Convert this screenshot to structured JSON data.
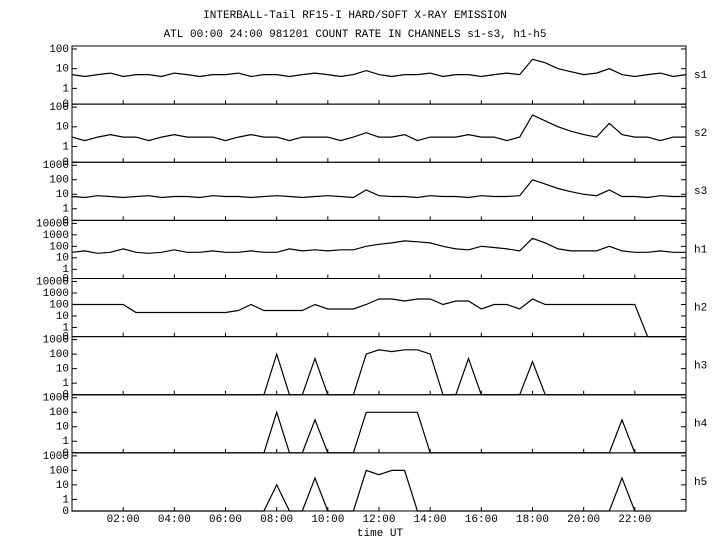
{
  "chart_data": {
    "type": "line",
    "title": "INTERBALL-Tail RF15-I HARD/SOFT X-RAY EMISSION",
    "subtitle": "ATL 00:00 24:00 981201  COUNT RATE IN CHANNELS s1-s3, h1-h5",
    "xlabel": "time UT",
    "yscale": "log",
    "color": "#000000",
    "xlim": [
      0,
      24
    ],
    "xticks": [
      {
        "value": 2,
        "label": "02:00"
      },
      {
        "value": 4,
        "label": "04:00"
      },
      {
        "value": 6,
        "label": "06:00"
      },
      {
        "value": 8,
        "label": "08:00"
      },
      {
        "value": 10,
        "label": "10:00"
      },
      {
        "value": 12,
        "label": "12:00"
      },
      {
        "value": 14,
        "label": "14:00"
      },
      {
        "value": 16,
        "label": "16:00"
      },
      {
        "value": 18,
        "label": "18:00"
      },
      {
        "value": 20,
        "label": "20:00"
      },
      {
        "value": 22,
        "label": "22:00"
      }
    ],
    "x": [
      0,
      0.5,
      1,
      1.5,
      2,
      2.5,
      3,
      3.5,
      4,
      4.5,
      5,
      5.5,
      6,
      6.5,
      7,
      7.5,
      8,
      8.5,
      9,
      9.5,
      10,
      10.5,
      11,
      11.5,
      12,
      12.5,
      13,
      13.5,
      14,
      14.5,
      15,
      15.5,
      16,
      16.5,
      17,
      17.5,
      18,
      18.5,
      19,
      19.5,
      20,
      20.5,
      21,
      21.5,
      22,
      22.5,
      23,
      23.5,
      24
    ],
    "panels": [
      {
        "name": "s1",
        "ylim": [
          0,
          100
        ],
        "yticks": [
          0,
          1,
          10,
          100
        ],
        "values": [
          5,
          4,
          5,
          6,
          4,
          5,
          5,
          4,
          6,
          5,
          4,
          5,
          5,
          6,
          4,
          5,
          5,
          4,
          5,
          6,
          5,
          4,
          5,
          8,
          5,
          4,
          5,
          5,
          6,
          4,
          5,
          5,
          4,
          5,
          6,
          5,
          30,
          20,
          10,
          7,
          5,
          6,
          10,
          5,
          4,
          5,
          6,
          4,
          5
        ]
      },
      {
        "name": "s2",
        "ylim": [
          0,
          100
        ],
        "yticks": [
          0,
          1,
          10,
          100
        ],
        "values": [
          3,
          2,
          3,
          4,
          3,
          3,
          2,
          3,
          4,
          3,
          3,
          3,
          2,
          3,
          4,
          3,
          3,
          2,
          3,
          3,
          3,
          2,
          3,
          5,
          3,
          3,
          4,
          2,
          3,
          3,
          3,
          4,
          3,
          3,
          2,
          3,
          40,
          20,
          10,
          6,
          4,
          3,
          15,
          4,
          3,
          3,
          2,
          3,
          3
        ]
      },
      {
        "name": "s3",
        "ylim": [
          0,
          1000
        ],
        "yticks": [
          0,
          1,
          10,
          100,
          1000
        ],
        "values": [
          7,
          6,
          8,
          7,
          6,
          7,
          8,
          6,
          7,
          7,
          6,
          8,
          7,
          7,
          6,
          7,
          8,
          7,
          6,
          7,
          8,
          7,
          6,
          20,
          8,
          7,
          7,
          6,
          8,
          7,
          7,
          6,
          8,
          7,
          7,
          8,
          100,
          50,
          25,
          15,
          10,
          8,
          20,
          7,
          7,
          6,
          8,
          7,
          7
        ]
      },
      {
        "name": "h1",
        "ylim": [
          0,
          10000
        ],
        "yticks": [
          0,
          1,
          10,
          100,
          1000,
          10000
        ],
        "values": [
          30,
          40,
          25,
          30,
          60,
          30,
          25,
          30,
          50,
          30,
          30,
          40,
          30,
          30,
          40,
          30,
          30,
          60,
          40,
          50,
          40,
          50,
          50,
          100,
          150,
          200,
          300,
          250,
          200,
          100,
          60,
          50,
          100,
          80,
          60,
          40,
          500,
          200,
          60,
          40,
          40,
          40,
          100,
          40,
          30,
          30,
          40,
          30,
          30
        ]
      },
      {
        "name": "h2",
        "ylim": [
          0,
          10000
        ],
        "yticks": [
          0,
          1,
          10,
          100,
          1000,
          10000
        ],
        "values": [
          100,
          100,
          100,
          100,
          100,
          20,
          20,
          20,
          20,
          20,
          20,
          20,
          20,
          30,
          100,
          30,
          30,
          30,
          30,
          100,
          40,
          40,
          40,
          100,
          300,
          300,
          200,
          300,
          300,
          100,
          200,
          200,
          40,
          100,
          100,
          40,
          300,
          100,
          100,
          100,
          100,
          100,
          100,
          100,
          100,
          0,
          0,
          0,
          0
        ]
      },
      {
        "name": "h3",
        "ylim": [
          0,
          1000
        ],
        "yticks": [
          0,
          1,
          10,
          100,
          1000
        ],
        "values": [
          0,
          0,
          0,
          0,
          0,
          0,
          0,
          0,
          0,
          0,
          0,
          0,
          0,
          0,
          0,
          0,
          100,
          0,
          0,
          50,
          0,
          0,
          0,
          100,
          200,
          150,
          200,
          200,
          100,
          0,
          0,
          50,
          0,
          0,
          0,
          0,
          30,
          0,
          0,
          0,
          0,
          0,
          0,
          0,
          0,
          0,
          0,
          0,
          0
        ]
      },
      {
        "name": "h4",
        "ylim": [
          0,
          1000
        ],
        "yticks": [
          0,
          1,
          10,
          100,
          1000
        ],
        "values": [
          0,
          0,
          0,
          0,
          0,
          0,
          0,
          0,
          0,
          0,
          0,
          0,
          0,
          0,
          0,
          0,
          100,
          0,
          0,
          30,
          0,
          0,
          0,
          100,
          100,
          100,
          100,
          100,
          0,
          0,
          0,
          0,
          0,
          0,
          0,
          0,
          0,
          0,
          0,
          0,
          0,
          0,
          0,
          30,
          0,
          0,
          0,
          0,
          0
        ]
      },
      {
        "name": "h5",
        "ylim": [
          0,
          1000
        ],
        "yticks": [
          0,
          1,
          10,
          100,
          1000
        ],
        "values": [
          0,
          0,
          0,
          0,
          0,
          0,
          0,
          0,
          0,
          0,
          0,
          0,
          0,
          0,
          0,
          0,
          10,
          0,
          0,
          30,
          0,
          0,
          0,
          100,
          50,
          100,
          100,
          0,
          0,
          0,
          0,
          0,
          0,
          0,
          0,
          0,
          0,
          0,
          0,
          0,
          0,
          0,
          0,
          30,
          0,
          0,
          0,
          0,
          0
        ]
      }
    ]
  }
}
